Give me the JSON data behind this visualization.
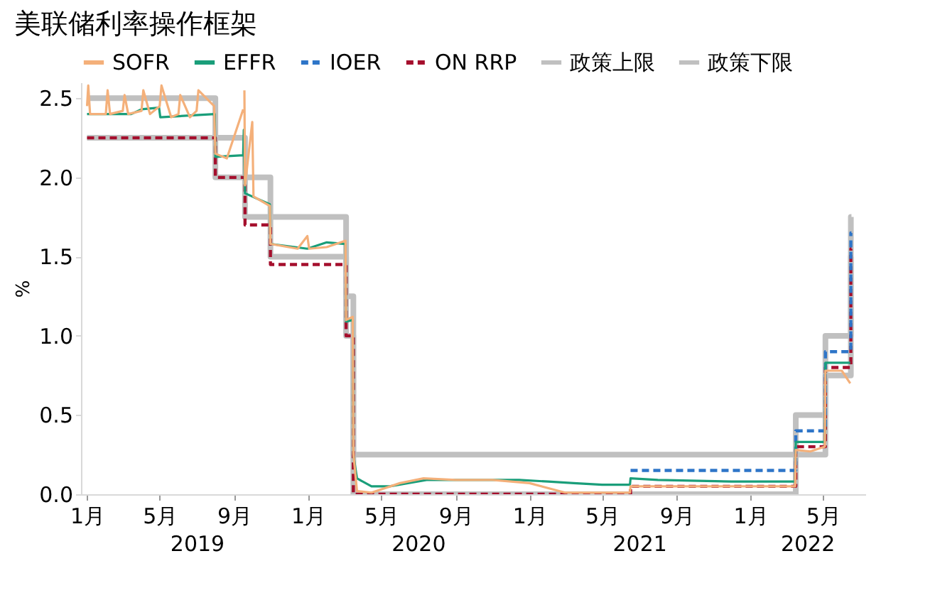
{
  "chart_data": {
    "type": "line",
    "title": "美联储利率操作框架",
    "ylabel": "%",
    "xlim": [
      "2018-12-22",
      "2022-07-10"
    ],
    "xticks": [
      {
        "value": "2019-01-01",
        "label": "1月"
      },
      {
        "value": "2019-05-01",
        "label": "5月"
      },
      {
        "value": "2019-09-01",
        "label": "9月"
      },
      {
        "value": "2020-01-01",
        "label": "1月"
      },
      {
        "value": "2020-05-01",
        "label": "5月"
      },
      {
        "value": "2020-09-01",
        "label": "9月"
      },
      {
        "value": "2021-01-01",
        "label": "1月"
      },
      {
        "value": "2021-05-01",
        "label": "5月"
      },
      {
        "value": "2021-09-01",
        "label": "9月"
      },
      {
        "value": "2022-01-01",
        "label": "1月"
      },
      {
        "value": "2022-05-01",
        "label": "5月"
      }
    ],
    "ylim": [
      0,
      2.6
    ],
    "yticks": [
      {
        "value": 0,
        "label": "0.0"
      },
      {
        "value": 0.5,
        "label": "0.5"
      },
      {
        "value": 1,
        "label": "1.0"
      },
      {
        "value": 1.5,
        "label": "1.5"
      },
      {
        "value": 2,
        "label": "2.0"
      },
      {
        "value": 2.5,
        "label": "2.5"
      }
    ],
    "annotations": [
      "2019",
      "2020",
      "2021",
      "2022"
    ],
    "legend": "top",
    "grid": false,
    "series": [
      {
        "name": "SOFR",
        "type": "line",
        "color": "#f4b07a",
        "line_style": "solid",
        "x": [
          "2019-01-01",
          "2019-01-03",
          "2019-01-06",
          "2019-02-01",
          "2019-02-04",
          "2019-02-08",
          "2019-03-01",
          "2019-03-04",
          "2019-03-10",
          "2019-04-01",
          "2019-04-04",
          "2019-04-15",
          "2019-05-01",
          "2019-05-04",
          "2019-05-20",
          "2019-06-01",
          "2019-06-04",
          "2019-06-20",
          "2019-07-01",
          "2019-07-04",
          "2019-07-30",
          "2019-08-01",
          "2019-08-20",
          "2019-09-16",
          "2019-09-17",
          "2019-09-18",
          "2019-09-19",
          "2019-10-01",
          "2019-10-03",
          "2019-10-30",
          "2019-10-31",
          "2019-12-15",
          "2019-12-31",
          "2020-01-03",
          "2020-02-01",
          "2020-03-03",
          "2020-03-04",
          "2020-03-15",
          "2020-03-16",
          "2020-03-22",
          "2020-04-15",
          "2020-06-01",
          "2020-07-10",
          "2020-09-01",
          "2020-11-01",
          "2021-01-01",
          "2021-03-01",
          "2021-05-01",
          "2021-06-16",
          "2021-06-17",
          "2021-12-01",
          "2022-03-16",
          "2022-03-17",
          "2022-04-10",
          "2022-05-04",
          "2022-05-05",
          "2022-06-01",
          "2022-06-15"
        ],
        "values": [
          2.45,
          2.58,
          2.4,
          2.4,
          2.55,
          2.4,
          2.42,
          2.52,
          2.4,
          2.42,
          2.55,
          2.4,
          2.45,
          2.58,
          2.38,
          2.4,
          2.52,
          2.38,
          2.42,
          2.55,
          2.45,
          2.15,
          2.12,
          2.43,
          null,
          2.55,
          1.95,
          2.35,
          1.88,
          1.82,
          1.58,
          1.55,
          1.63,
          1.55,
          1.56,
          1.6,
          1.1,
          1.12,
          0.26,
          0.02,
          0.01,
          0.07,
          0.1,
          0.09,
          0.09,
          0.07,
          0.01,
          0.01,
          0.01,
          0.05,
          0.05,
          0.05,
          0.28,
          0.27,
          0.3,
          0.78,
          0.78,
          0.7
        ]
      },
      {
        "name": "EFFR",
        "type": "line",
        "color": "#1a9e7a",
        "line_style": "solid",
        "x": [
          "2019-01-01",
          "2019-03-15",
          "2019-04-01",
          "2019-04-30",
          "2019-05-02",
          "2019-07-31",
          "2019-08-01",
          "2019-09-16",
          "2019-09-17",
          "2019-09-19",
          "2019-10-30",
          "2019-10-31",
          "2019-12-31",
          "2020-02-01",
          "2020-03-03",
          "2020-03-04",
          "2020-03-15",
          "2020-03-16",
          "2020-03-22",
          "2020-04-15",
          "2020-05-15",
          "2020-07-15",
          "2020-10-01",
          "2020-12-15",
          "2021-02-01",
          "2021-03-15",
          "2021-05-01",
          "2021-06-16",
          "2021-06-17",
          "2021-08-01",
          "2021-12-01",
          "2022-03-16",
          "2022-03-17",
          "2022-05-04",
          "2022-05-05",
          "2022-06-15"
        ],
        "values": [
          2.4,
          2.4,
          2.43,
          2.44,
          2.38,
          2.4,
          2.13,
          2.14,
          2.3,
          1.9,
          1.83,
          1.58,
          1.55,
          1.59,
          1.58,
          1.09,
          1.1,
          0.25,
          0.1,
          0.05,
          0.05,
          0.09,
          0.09,
          0.09,
          0.08,
          0.07,
          0.06,
          0.06,
          0.1,
          0.09,
          0.08,
          0.08,
          0.33,
          0.33,
          0.83,
          0.83
        ]
      },
      {
        "name": "IOER",
        "type": "step",
        "color": "#2e75c8",
        "line_style": "dashed",
        "x": [
          "2021-06-17",
          "2022-03-17",
          "2022-05-05",
          "2022-06-16",
          "2022-06-17"
        ],
        "values": [
          0.15,
          0.4,
          0.9,
          1.65,
          1.65
        ]
      },
      {
        "name": "ON RRP",
        "type": "step",
        "color": "#a50f2d",
        "line_style": "dashed",
        "x": [
          "2019-01-01",
          "2019-08-01",
          "2019-09-19",
          "2019-10-31",
          "2020-03-04",
          "2020-03-16",
          "2021-06-17",
          "2022-03-17",
          "2022-05-05",
          "2022-06-16",
          "2022-06-17"
        ],
        "values": [
          2.25,
          2.0,
          1.7,
          1.45,
          1.0,
          0.0,
          0.05,
          0.3,
          0.8,
          1.55,
          1.55
        ]
      },
      {
        "name": "政策上限",
        "type": "step",
        "color": "#c0c0c0",
        "line_style": "solid",
        "x": [
          "2019-01-01",
          "2019-08-01",
          "2019-09-19",
          "2019-10-31",
          "2020-03-04",
          "2020-03-16",
          "2022-03-17",
          "2022-05-05",
          "2022-06-16",
          "2022-06-17"
        ],
        "values": [
          2.5,
          2.25,
          2.0,
          1.75,
          1.25,
          0.25,
          0.5,
          1.0,
          1.75,
          1.75
        ]
      },
      {
        "name": "政策下限",
        "type": "step",
        "color": "#c0c0c0",
        "line_style": "solid",
        "x": [
          "2019-01-01",
          "2019-08-01",
          "2019-09-19",
          "2019-10-31",
          "2020-03-04",
          "2020-03-16",
          "2022-03-17",
          "2022-05-05",
          "2022-06-16",
          "2022-06-17"
        ],
        "values": [
          2.25,
          2.0,
          1.75,
          1.5,
          1.0,
          0.0,
          0.25,
          0.75,
          1.5,
          1.5
        ]
      }
    ]
  }
}
